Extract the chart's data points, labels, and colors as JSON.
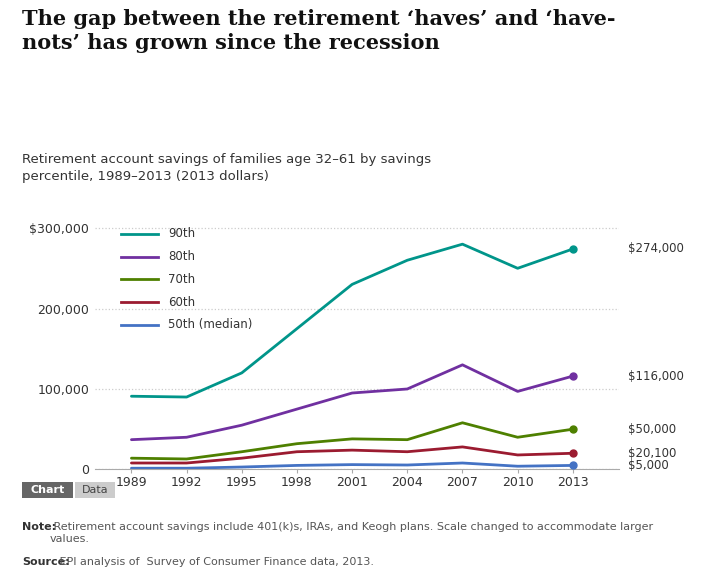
{
  "title_line1": "The gap between the retirement ‘haves’ and ‘have-",
  "title_line2": "nots’ has grown since the recession",
  "subtitle": "Retirement account savings of families age 32–61 by savings\npercentile, 1989–2013 (2013 dollars)",
  "years": [
    1989,
    1992,
    1995,
    1998,
    2001,
    2004,
    2007,
    2010,
    2013
  ],
  "series_order": [
    "90th",
    "80th",
    "70th",
    "60th",
    "50th (median)"
  ],
  "series": {
    "90th": {
      "color": "#00958a",
      "values": [
        91000,
        90000,
        120000,
        175000,
        230000,
        260000,
        280000,
        250000,
        274000
      ],
      "label_end": "$274,000"
    },
    "80th": {
      "color": "#7030a0",
      "values": [
        37000,
        40000,
        55000,
        75000,
        95000,
        100000,
        130000,
        97000,
        116000
      ],
      "label_end": "$116,000"
    },
    "70th": {
      "color": "#4e8000",
      "values": [
        14000,
        13000,
        22000,
        32000,
        38000,
        37000,
        58000,
        40000,
        50000
      ],
      "label_end": "$50,000"
    },
    "60th": {
      "color": "#9b1b30",
      "values": [
        8000,
        8000,
        14000,
        22000,
        24000,
        22000,
        28000,
        18000,
        20100
      ],
      "label_end": "$20,100"
    },
    "50th (median)": {
      "color": "#4472c4",
      "values": [
        1500,
        1500,
        3000,
        5000,
        6000,
        5500,
        8000,
        4000,
        5000
      ],
      "label_end": "$5,000"
    }
  },
  "ylim": [
    0,
    315000
  ],
  "yticks": [
    0,
    100000,
    200000,
    300000
  ],
  "ytick_labels": [
    "0",
    "100,000",
    "200,000",
    "$300,000"
  ],
  "note_bold": "Note:",
  "note_rest": " Retirement account savings include 401(k)s, IRAs, and Keogh plans. Scale changed to accommodate larger\nvalues.",
  "source_bold": "Source:",
  "source_rest": " EPI analysis of  Survey of Consumer Finance data, 2013.",
  "background_color": "#ffffff",
  "grid_color": "#cccccc",
  "text_color": "#333333",
  "tab1_label": "Chart",
  "tab2_label": "Data",
  "tab1_bg": "#666666",
  "tab2_bg": "#cccccc"
}
